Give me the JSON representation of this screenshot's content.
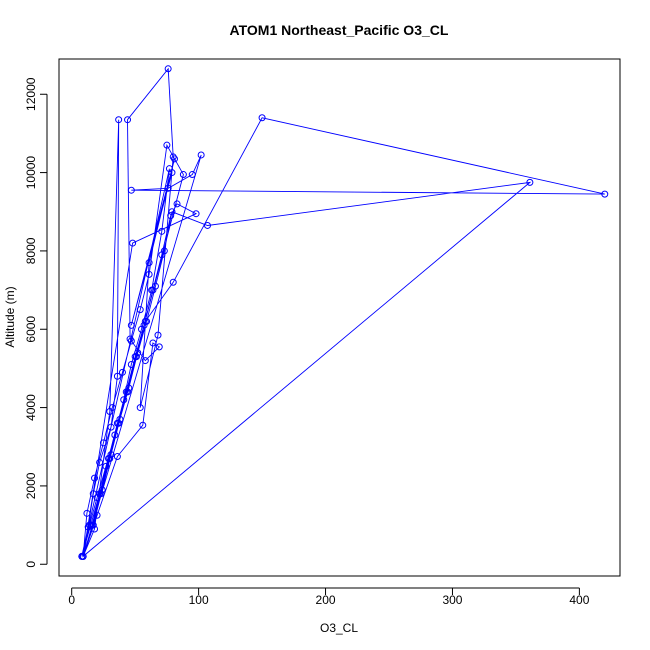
{
  "chart_data": {
    "type": "line",
    "title": "ATOM1 Northeast_Pacific O3_CL",
    "xlabel": "O3_CL",
    "ylabel": "Altitude (m)",
    "xlim": [
      -10,
      432
    ],
    "ylim": [
      -300,
      12900
    ],
    "x_ticks": [
      0,
      100,
      200,
      300,
      400
    ],
    "y_ticks": [
      0,
      2000,
      4000,
      6000,
      8000,
      10000,
      12000
    ],
    "grid": false,
    "legend": "none",
    "series": [
      {
        "color": "#0000ff",
        "marker": "open-circle",
        "x": [
          8,
          13,
          17,
          22,
          31,
          36,
          37,
          30,
          18,
          9,
          14,
          20,
          27,
          34,
          41,
          47,
          55,
          63,
          71,
          77,
          8,
          15,
          22,
          29,
          36,
          43,
          50,
          57,
          64,
          71,
          78,
          83,
          98,
          48,
          9,
          17,
          24,
          31,
          38,
          45,
          52,
          59,
          66,
          73,
          79,
          107,
          361,
          9,
          12,
          18,
          25,
          32,
          40,
          47,
          54,
          61,
          75,
          88,
          16,
          23,
          30,
          37,
          44,
          51,
          58,
          80,
          150,
          420,
          47,
          76,
          95,
          102,
          9,
          20,
          36,
          56,
          64,
          69,
          58,
          46,
          44,
          76,
          80,
          68,
          54,
          61,
          81,
          47,
          79
        ],
        "y": [
          200,
          950,
          1800,
          2600,
          3500,
          4800,
          11350,
          3900,
          900,
          200,
          1000,
          1700,
          2500,
          3300,
          4200,
          5100,
          6000,
          7000,
          8500,
          10100,
          200,
          1000,
          1800,
          2700,
          3600,
          4400,
          5300,
          6100,
          7000,
          7900,
          8900,
          9200,
          8950,
          8200,
          200,
          1000,
          1900,
          2800,
          3700,
          4500,
          5400,
          6200,
          7100,
          8000,
          9000,
          8650,
          9750,
          200,
          1300,
          2200,
          3100,
          4000,
          4900,
          5700,
          6500,
          7400,
          10700,
          9950,
          1000,
          1800,
          2700,
          3600,
          4400,
          5300,
          6200,
          7200,
          11400,
          9450,
          9550,
          9600,
          9950,
          10450,
          200,
          1250,
          2750,
          3550,
          5650,
          5550,
          5200,
          5750,
          11350,
          12650,
          10400,
          5850,
          4000,
          7700,
          10350,
          6100,
          10000
        ]
      }
    ]
  }
}
